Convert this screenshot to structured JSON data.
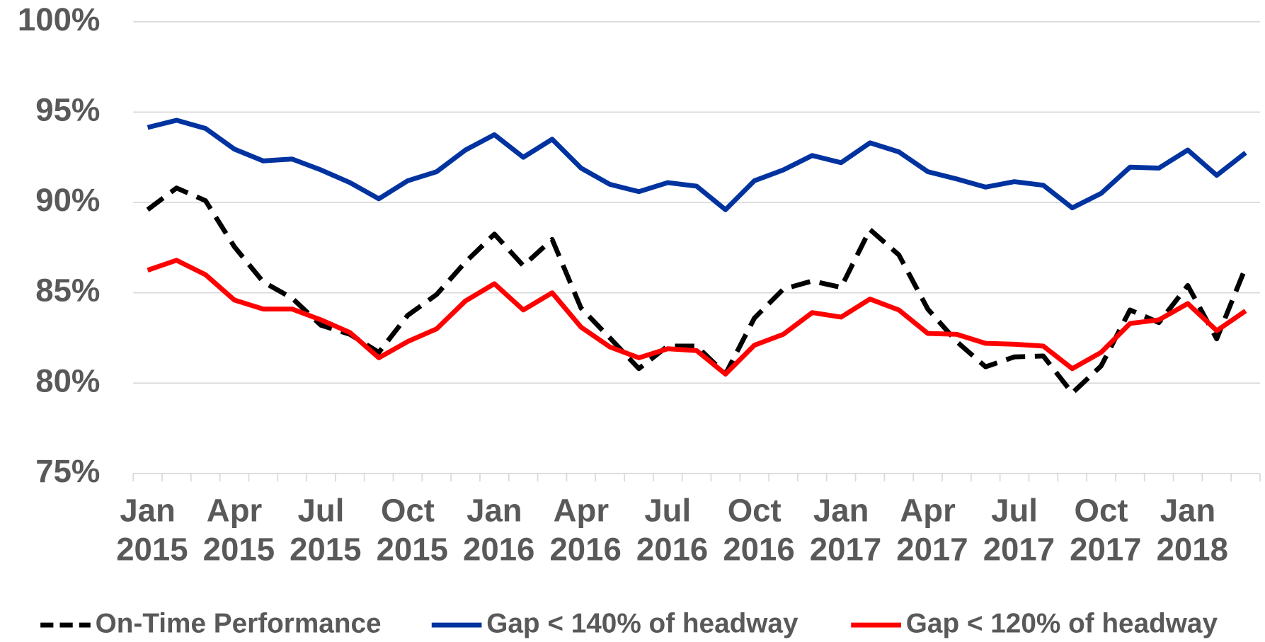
{
  "chart_data": {
    "type": "line",
    "categories": [
      "Jan 2015",
      null,
      null,
      "Apr 2015",
      null,
      null,
      "Jul 2015",
      null,
      null,
      "Oct 2015",
      null,
      null,
      "Jan 2016",
      null,
      null,
      "Apr 2016",
      null,
      null,
      "Jul 2016",
      null,
      null,
      "Oct 2016",
      null,
      null,
      "Jan 2017",
      null,
      null,
      "Apr 2017",
      null,
      null,
      "Jul 2017",
      null,
      null,
      "Oct 2017",
      null,
      null,
      "Jan 2018",
      null,
      null
    ],
    "series": [
      {
        "name": "On-Time Performance",
        "color": "#000000",
        "dash": true,
        "values": [
          89.6,
          90.8,
          90.1,
          87.55,
          85.6,
          84.7,
          83.2,
          82.7,
          81.7,
          83.75,
          84.9,
          86.7,
          88.25,
          86.5,
          87.95,
          84.15,
          82.5,
          80.8,
          82.05,
          82.05,
          80.5,
          83.6,
          85.2,
          85.65,
          85.3,
          88.5,
          87.1,
          84.1,
          82.3,
          80.9,
          81.45,
          81.5,
          79.45,
          80.95,
          84.05,
          83.35,
          85.4,
          82.45,
          86.4
        ]
      },
      {
        "name": "Gap < 140% of headway",
        "color": "#0033a0",
        "values": [
          94.15,
          94.55,
          94.1,
          92.95,
          92.3,
          92.4,
          91.8,
          91.1,
          90.2,
          91.2,
          91.7,
          92.9,
          93.75,
          92.5,
          93.5,
          91.9,
          91.0,
          90.6,
          91.1,
          90.9,
          89.6,
          91.2,
          91.8,
          92.6,
          92.2,
          93.3,
          92.8,
          91.7,
          91.3,
          90.85,
          91.15,
          90.95,
          89.7,
          90.5,
          91.95,
          91.9,
          92.9,
          91.5,
          92.75
        ]
      },
      {
        "name": "Gap < 120% of headway",
        "color": "#ff0000",
        "values": [
          86.25,
          86.8,
          86.0,
          84.6,
          84.1,
          84.1,
          83.5,
          82.8,
          81.4,
          82.3,
          83.0,
          84.55,
          85.5,
          84.05,
          85.0,
          83.1,
          82.0,
          81.4,
          81.9,
          81.8,
          80.5,
          82.1,
          82.7,
          83.9,
          83.65,
          84.65,
          84.05,
          82.75,
          82.7,
          82.2,
          82.15,
          82.05,
          80.8,
          81.7,
          83.3,
          83.5,
          84.4,
          82.9,
          84.0
        ]
      }
    ],
    "ylim": [
      75,
      100
    ],
    "yticks": [
      {
        "value": 75,
        "label": "75%"
      },
      {
        "value": 80,
        "label": "80%"
      },
      {
        "value": 85,
        "label": "85%"
      },
      {
        "value": 90,
        "label": "90%"
      },
      {
        "value": 95,
        "label": "95%"
      },
      {
        "value": 100,
        "label": "100%"
      }
    ],
    "grid": true,
    "legend": "bottom"
  }
}
